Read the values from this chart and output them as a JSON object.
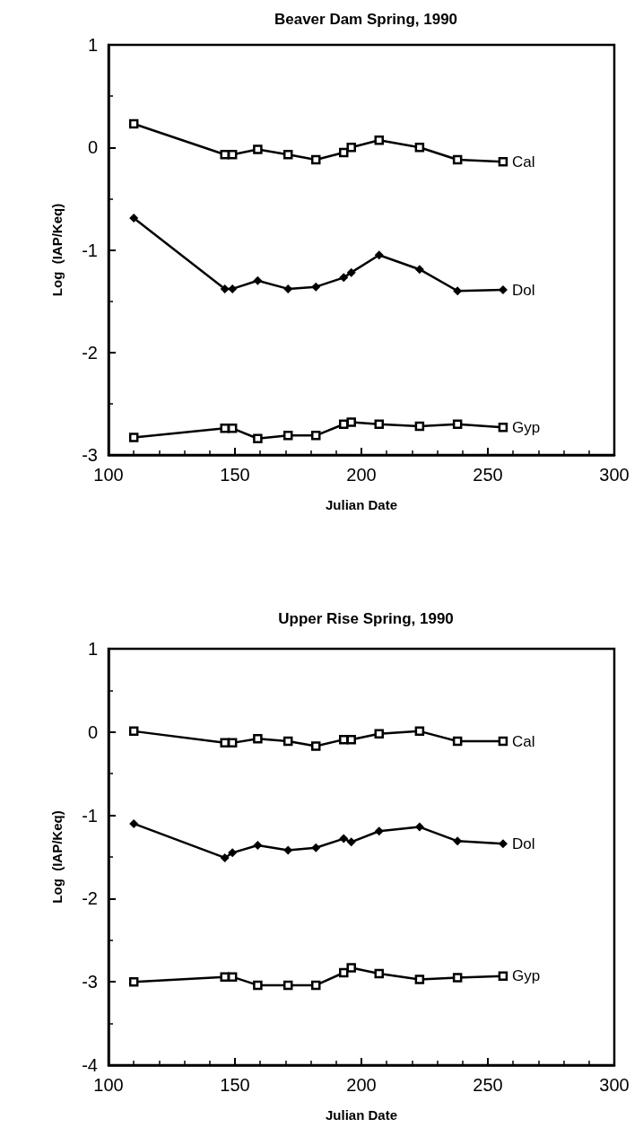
{
  "chart_data": [
    {
      "type": "line",
      "title": "Beaver Dam Spring, 1990",
      "xlabel": "Julian Date",
      "ylabel": "Log  (IAP/Keq)",
      "xlim": [
        100,
        300
      ],
      "xticks": [
        100,
        150,
        200,
        250,
        300
      ],
      "ylim": [
        -3,
        1
      ],
      "yticks": [
        -3,
        -2,
        -1,
        0,
        1
      ],
      "grid": false,
      "legend": false,
      "line_style": "solid",
      "x": [
        110,
        146,
        149,
        159,
        171,
        182,
        193,
        196,
        207,
        223,
        238,
        256
      ],
      "series": [
        {
          "name": "Cal",
          "color": "#000000",
          "marker": "square",
          "values": [
            0.23,
            -0.07,
            -0.07,
            -0.02,
            -0.07,
            -0.12,
            -0.05,
            0.0,
            0.07,
            0.0,
            -0.12,
            -0.14
          ]
        },
        {
          "name": "Dol",
          "color": "#000000",
          "marker": "diamond",
          "values": [
            -0.69,
            -1.38,
            -1.38,
            -1.3,
            -1.38,
            -1.36,
            -1.27,
            -1.22,
            -1.05,
            -1.19,
            -1.4,
            -1.39
          ]
        },
        {
          "name": "Gyp",
          "color": "#000000",
          "marker": "square",
          "values": [
            -2.83,
            -2.74,
            -2.74,
            -2.84,
            -2.81,
            -2.81,
            -2.7,
            -2.68,
            -2.7,
            -2.72,
            -2.7,
            -2.73
          ]
        }
      ]
    },
    {
      "type": "line",
      "title": "Upper Rise Spring, 1990",
      "xlabel": "Julian Date",
      "ylabel": "Log  (IAP/Keq)",
      "xlim": [
        100,
        300
      ],
      "xticks": [
        100,
        150,
        200,
        250,
        300
      ],
      "ylim": [
        -4,
        1
      ],
      "yticks": [
        -4,
        -3,
        -2,
        -1,
        0,
        1
      ],
      "grid": false,
      "legend": false,
      "line_style": "solid",
      "x": [
        110,
        146,
        149,
        159,
        171,
        182,
        193,
        196,
        207,
        223,
        238,
        256
      ],
      "series": [
        {
          "name": "Cal",
          "color": "#000000",
          "marker": "square",
          "values": [
            0.01,
            -0.13,
            -0.13,
            -0.08,
            -0.11,
            -0.17,
            -0.09,
            -0.09,
            -0.02,
            0.01,
            -0.11,
            -0.11
          ]
        },
        {
          "name": "Dol",
          "color": "#000000",
          "marker": "diamond",
          "values": [
            -1.1,
            -1.51,
            -1.45,
            -1.36,
            -1.42,
            -1.39,
            -1.28,
            -1.32,
            -1.19,
            -1.14,
            -1.31,
            -1.34
          ]
        },
        {
          "name": "Gyp",
          "color": "#000000",
          "marker": "square",
          "values": [
            -3.0,
            -2.94,
            -2.94,
            -3.04,
            -3.04,
            -3.04,
            -2.89,
            -2.83,
            -2.9,
            -2.97,
            -2.95,
            -2.93
          ]
        }
      ]
    }
  ]
}
